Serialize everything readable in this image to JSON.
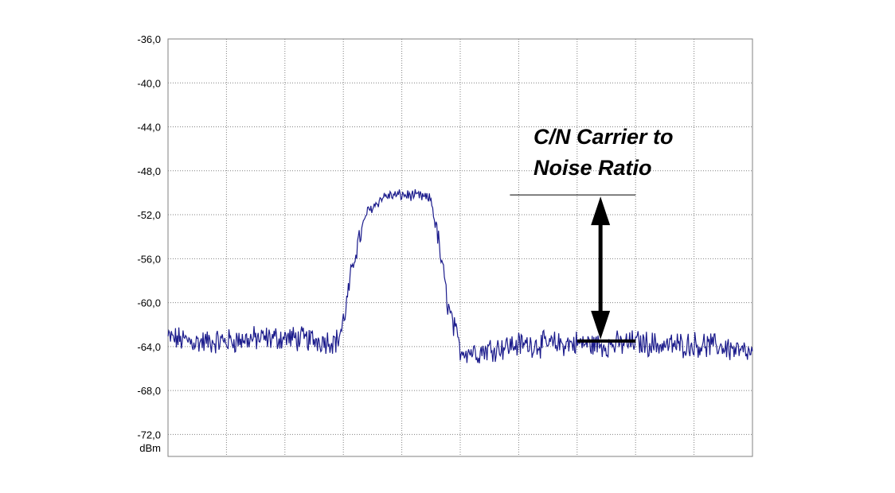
{
  "chart_data": {
    "type": "line",
    "ylabel": "dBm",
    "ylim": [
      -74.0,
      -36.0
    ],
    "yticks": [
      "-36,0",
      "-40,0",
      "-44,0",
      "-48,0",
      "-52,0",
      "-56,0",
      "-60,0",
      "-64,0",
      "-68,0",
      "-72,0"
    ],
    "ytick_values": [
      -36,
      -40,
      -44,
      -48,
      -52,
      -56,
      -60,
      -64,
      -68,
      -72
    ],
    "x_gridlines": 10,
    "grid": true,
    "series": [
      {
        "color": "#1c1c8c",
        "x": [
          0,
          0.05,
          0.1,
          0.15,
          0.2,
          0.25,
          0.29,
          0.3,
          0.32,
          0.34,
          0.37,
          0.4,
          0.43,
          0.45,
          0.46,
          0.48,
          0.5,
          0.53,
          0.55,
          0.6,
          0.65,
          0.7,
          0.75,
          0.8,
          0.85,
          0.9,
          0.95,
          1.0
        ],
        "values": [
          -63.2,
          -63.6,
          -63.5,
          -63.3,
          -63.2,
          -63.4,
          -63.5,
          -61.8,
          -55.5,
          -51.8,
          -50.3,
          -50.2,
          -50.3,
          -50.6,
          -53.5,
          -60.5,
          -64.3,
          -64.5,
          -64.2,
          -63.8,
          -63.8,
          -63.7,
          -63.9,
          -63.6,
          -63.9,
          -63.8,
          -64.0,
          -64.8
        ]
      }
    ],
    "annotation": {
      "text_line1": "C/N Carrier to",
      "text_line2": "Noise Ratio",
      "carrier_level": -50.2,
      "noise_level": -63.5
    }
  }
}
